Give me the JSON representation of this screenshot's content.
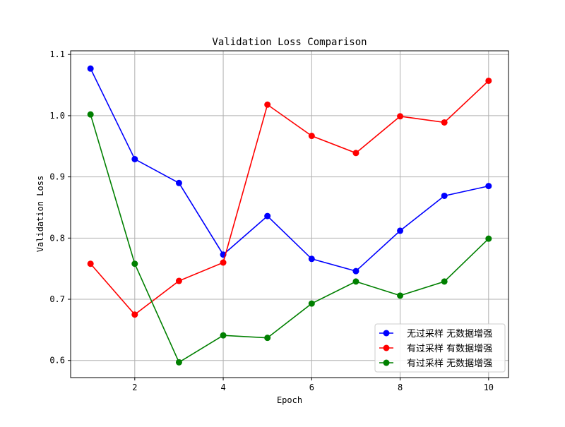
{
  "chart_data": {
    "type": "line",
    "title": "Validation Loss Comparison",
    "xlabel": "Epoch",
    "ylabel": "Validation Loss",
    "x": [
      1,
      2,
      3,
      4,
      5,
      6,
      7,
      8,
      9,
      10
    ],
    "xlim": [
      0.55,
      10.45
    ],
    "ylim": [
      0.572,
      1.106
    ],
    "xticks": [
      2,
      4,
      6,
      8,
      10
    ],
    "xtick_labels": [
      "2",
      "4",
      "6",
      "8",
      "10"
    ],
    "yticks": [
      0.6,
      0.7,
      0.8,
      0.9,
      1.0,
      1.1
    ],
    "ytick_labels": [
      "0.6",
      "0.7",
      "0.8",
      "0.9",
      "1.0",
      "1.1"
    ],
    "grid": true,
    "legend_position": "bottom-right",
    "series": [
      {
        "name": "无过采样 无数据增强",
        "color": "#0000ff",
        "values": [
          1.077,
          0.929,
          0.89,
          0.773,
          0.836,
          0.766,
          0.746,
          0.812,
          0.869,
          0.885
        ]
      },
      {
        "name": "有过采样 有数据增强",
        "color": "#ff0000",
        "values": [
          0.758,
          0.675,
          0.73,
          0.76,
          1.018,
          0.967,
          0.939,
          0.999,
          0.989,
          1.057
        ]
      },
      {
        "name": "有过采样 无数据增强",
        "color": "#008000",
        "values": [
          1.002,
          0.758,
          0.597,
          0.641,
          0.637,
          0.693,
          0.729,
          0.706,
          0.729,
          0.799
        ]
      }
    ]
  }
}
